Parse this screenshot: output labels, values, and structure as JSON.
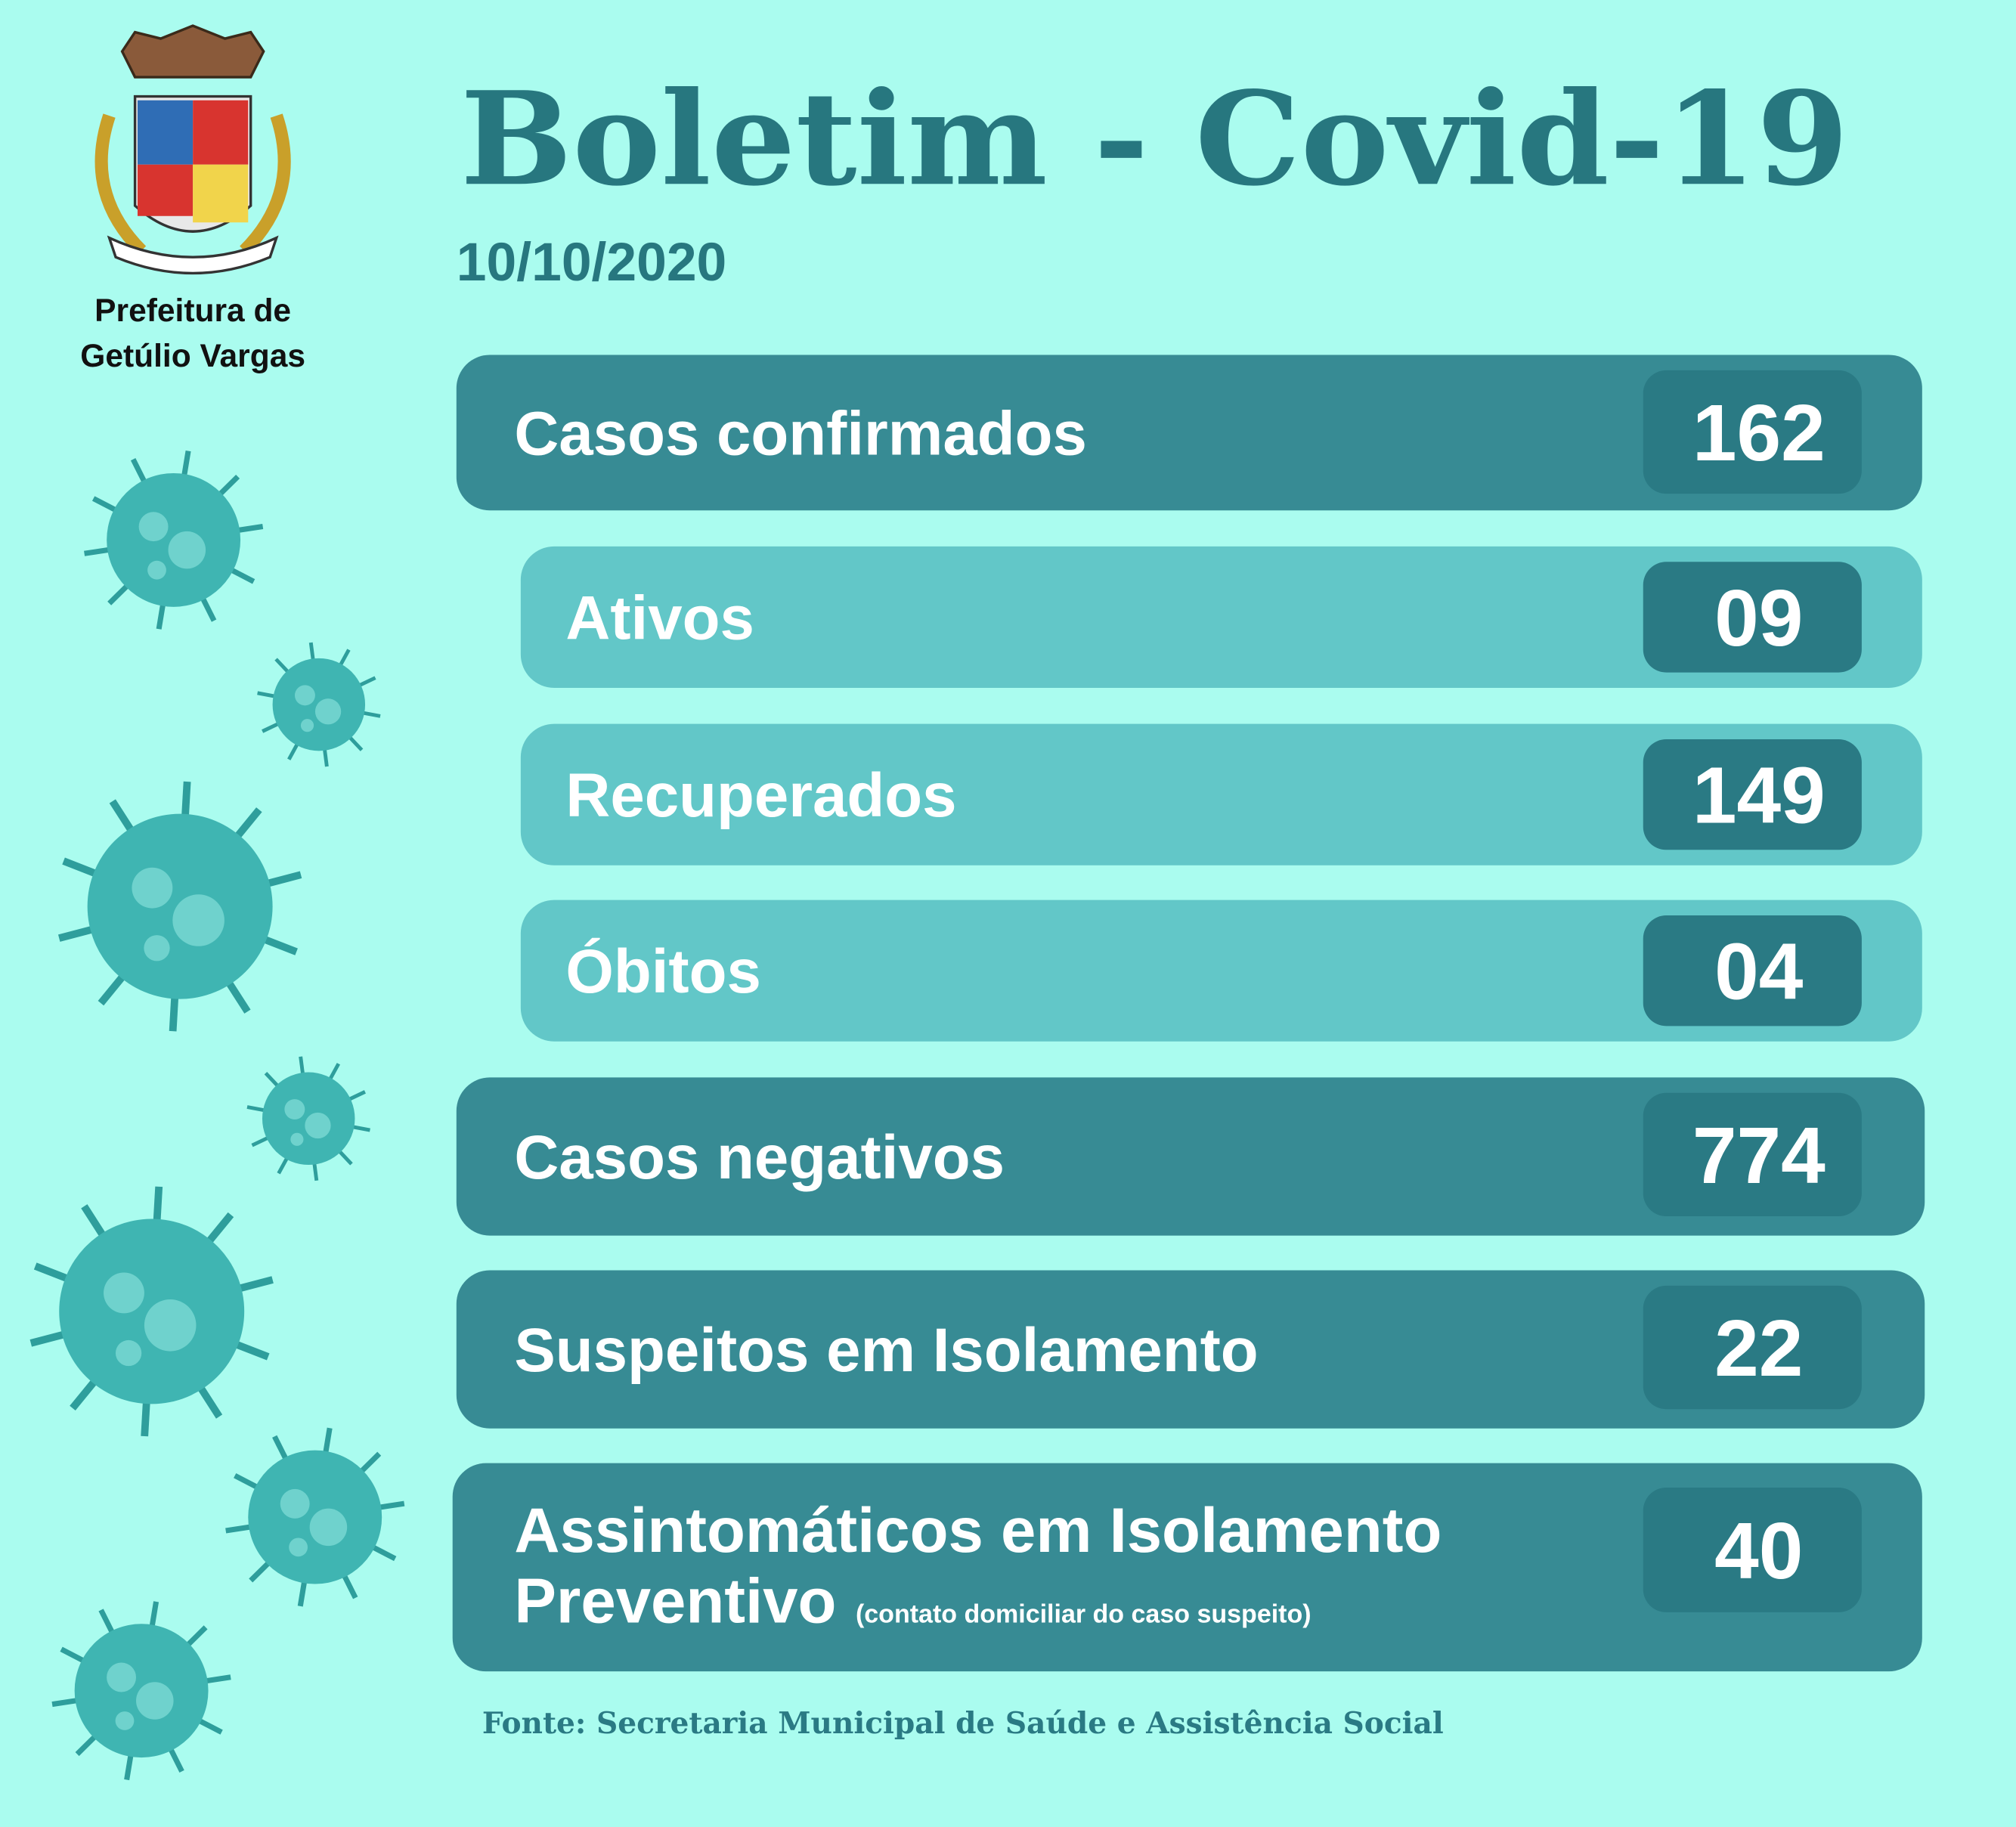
{
  "header": {
    "logo_text": [
      "Prefeitura de",
      "Getúlio Vargas"
    ],
    "title": "Boletim - Covid-19",
    "date": "10/10/2020"
  },
  "rows": [
    {
      "label": "Casos confirmados",
      "value": "162"
    },
    {
      "label": "Ativos",
      "value": "09"
    },
    {
      "label": "Recuperados",
      "value": "149"
    },
    {
      "label": "Óbitos",
      "value": "04"
    },
    {
      "label": "Casos negativos",
      "value": "774"
    },
    {
      "label": "Suspeitos em Isolamento",
      "value": "22"
    },
    {
      "label": [
        "Assintomáticos em Isolamento",
        "Preventivo"
      ],
      "note": "(contato domiciliar do caso suspeito)",
      "value": "40"
    }
  ],
  "footer": "Fonte: Secretaria Municipal de Saúde e Assistência Social"
}
